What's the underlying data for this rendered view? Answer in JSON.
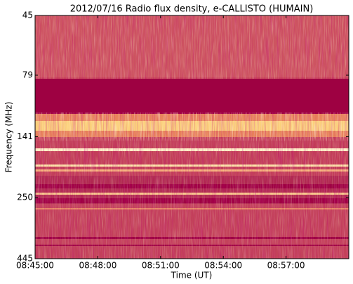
{
  "chart_data": {
    "type": "spectrogram",
    "title": "2012/07/16  Radio flux density, e-CALLISTO (HUMAIN)",
    "x_label": "Time (UT)",
    "y_label": "Frequency (MHz)",
    "xlim": [
      "08:45:00",
      "09:00:00"
    ],
    "xticks": [
      "08:45:00",
      "08:48:00",
      "08:51:00",
      "08:54:00",
      "08:57:00"
    ],
    "ylim": [
      45,
      445
    ],
    "yticks": [
      45,
      79,
      141,
      250,
      445
    ],
    "y_scale": "log",
    "y_inverted": true
  }
}
